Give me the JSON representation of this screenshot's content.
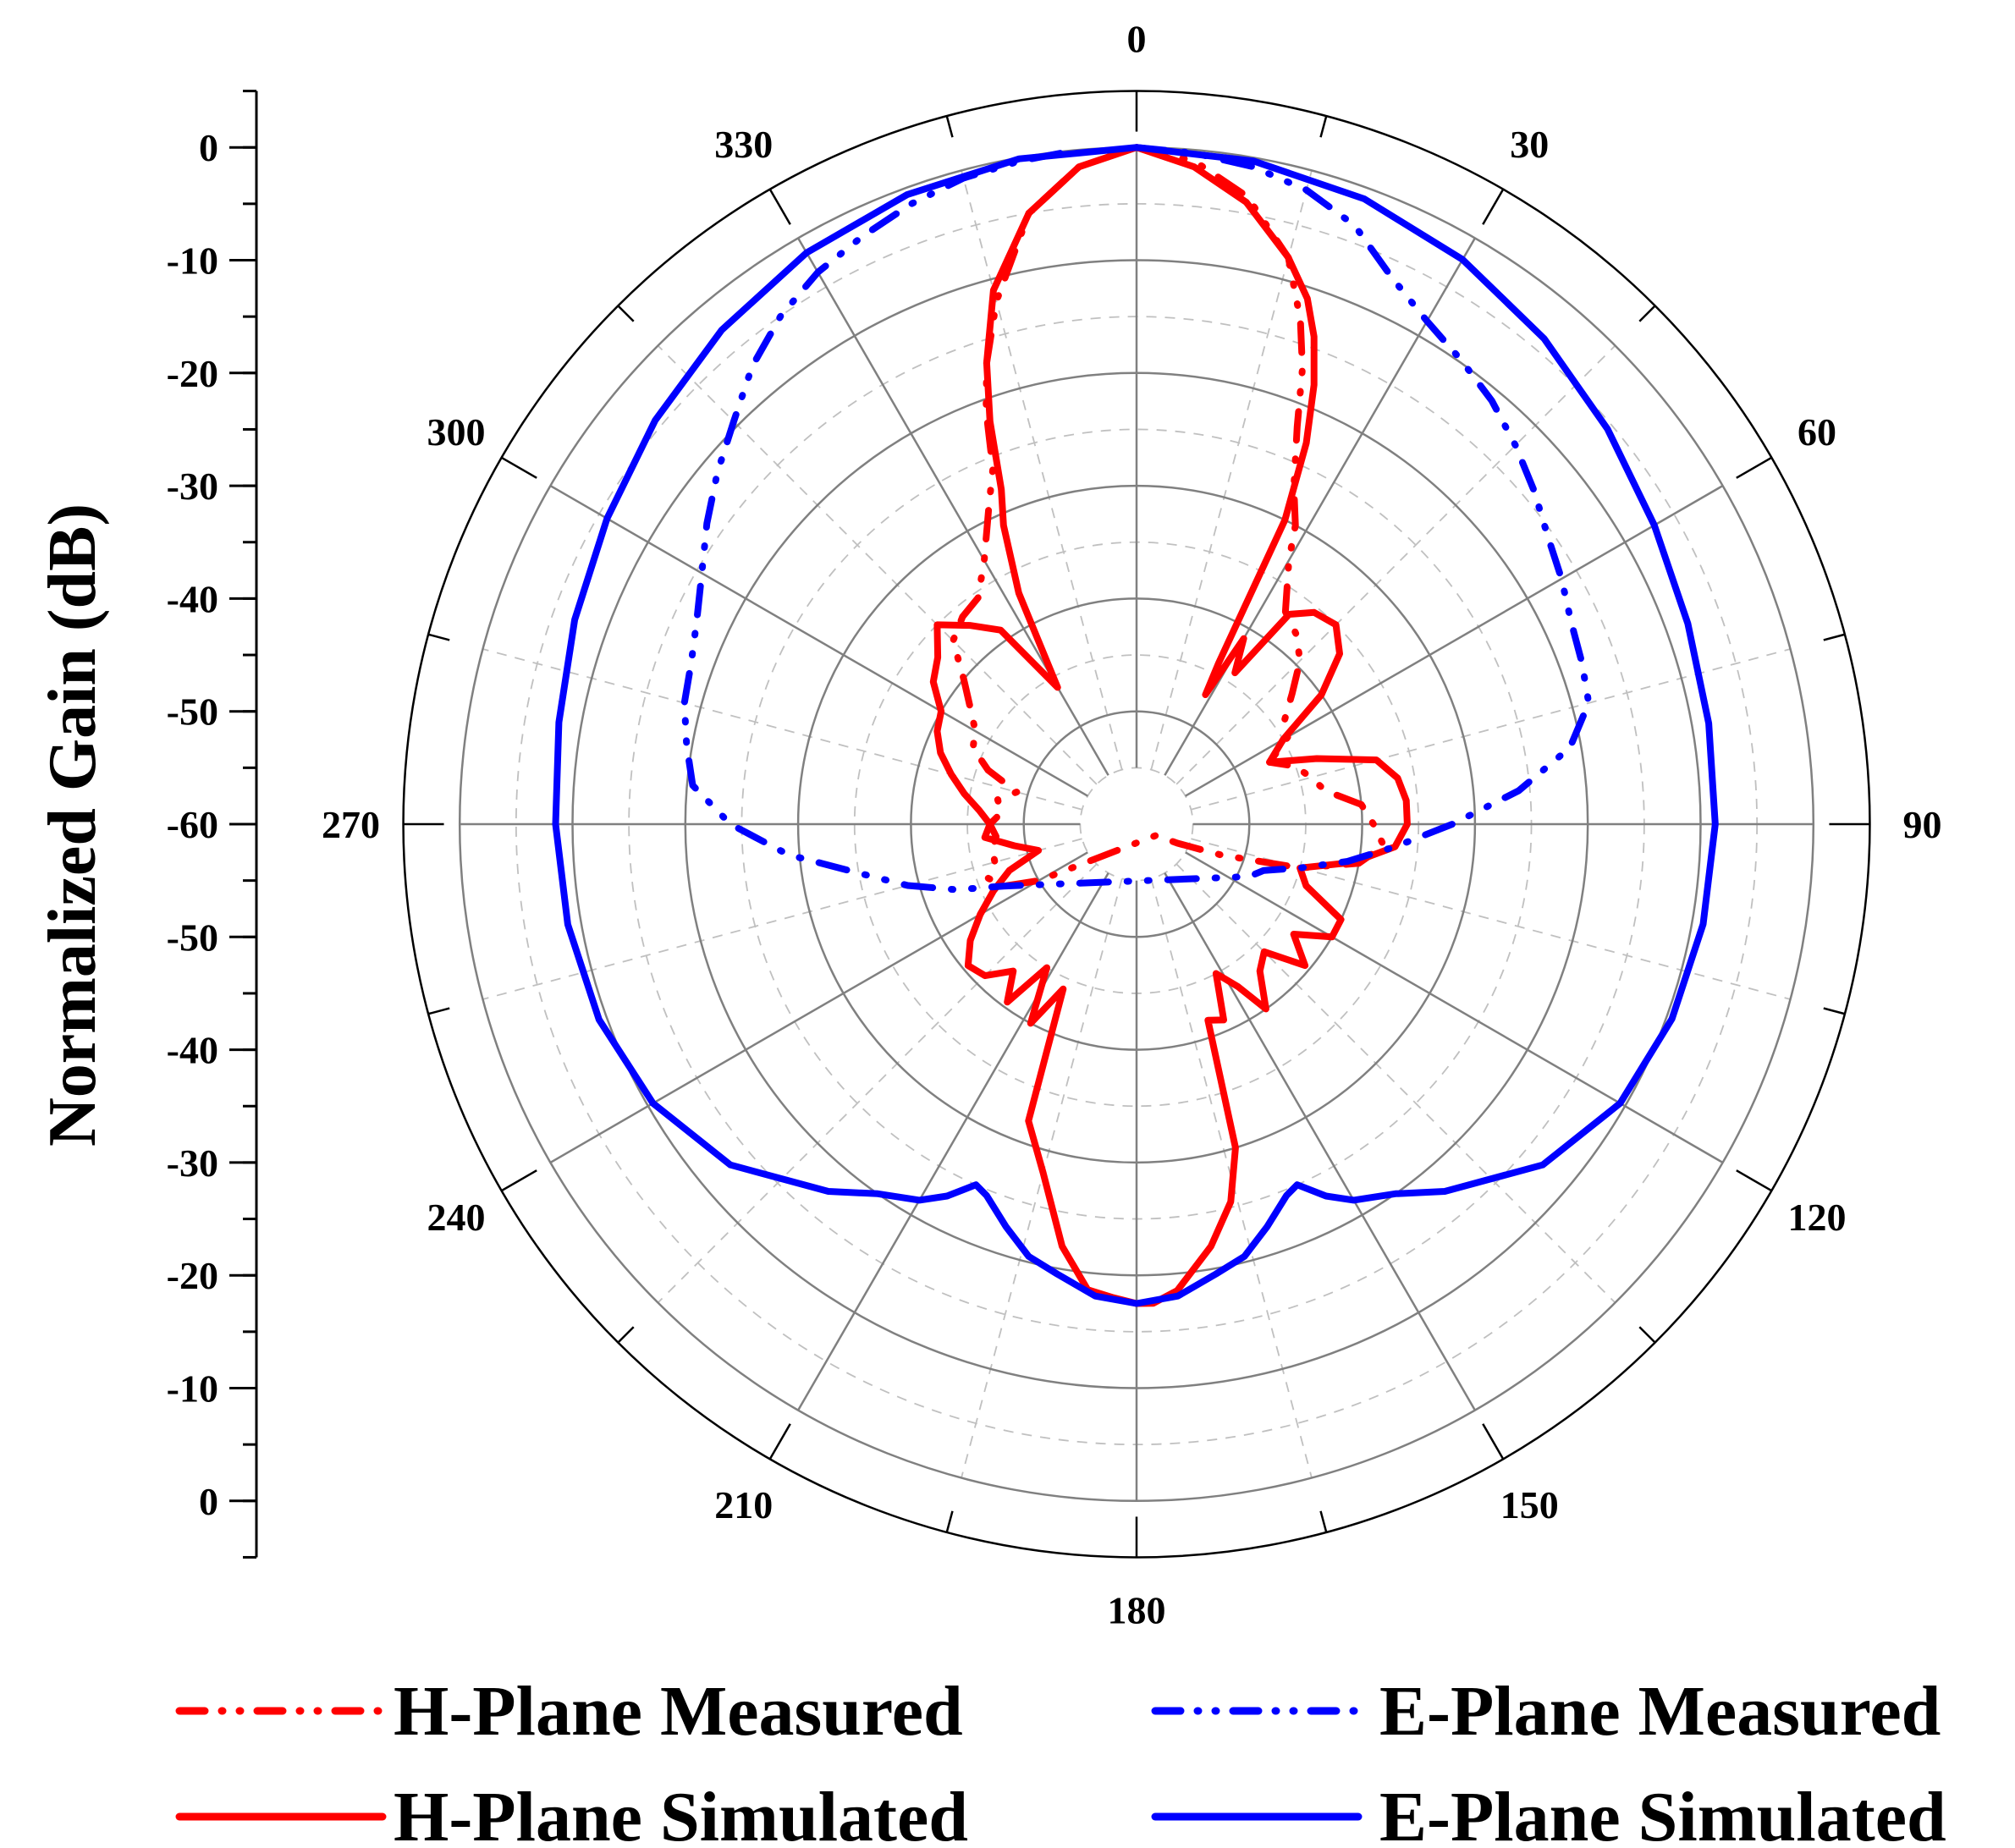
{
  "chart_data": {
    "type": "polar-line",
    "title": "",
    "ylabel": "Normalized Gain (dB)",
    "radial_axis": {
      "min": -60,
      "max": 0,
      "outer_limit": 5,
      "major_step": 10,
      "minor_step": 5,
      "left_axis_tick_labels": [
        "0",
        "-10",
        "-20",
        "-30",
        "-40",
        "-50",
        "-60",
        "-50",
        "-40",
        "-30",
        "-20",
        "-10",
        "0"
      ]
    },
    "angular_axis": {
      "unit": "degrees",
      "direction": "clockwise",
      "zero_location": "top",
      "major_step": 30,
      "minor_step": 15,
      "tick_labels": [
        "0",
        "30",
        "60",
        "90",
        "120",
        "150",
        "180",
        "210",
        "240",
        "270",
        "300",
        "330"
      ]
    },
    "grid": true,
    "legend_position": "bottom",
    "series": [
      {
        "name": "H-Plane Measured",
        "color": "#ff0000",
        "style": "dash-dot-dot",
        "angles": [
          0,
          5,
          10,
          15,
          18,
          20,
          22,
          25,
          28,
          30,
          35,
          40,
          45,
          50,
          55,
          60,
          65,
          70,
          75,
          80,
          85,
          90,
          95,
          100,
          105,
          110,
          115,
          120,
          240,
          245,
          250,
          255,
          260,
          265,
          270,
          275,
          280,
          285,
          290,
          295,
          300,
          305,
          310,
          315,
          320,
          325,
          330,
          335,
          338,
          340,
          342,
          345,
          350,
          355
        ],
        "values": [
          0,
          -1,
          -3.5,
          -8,
          -13,
          -17,
          -22,
          -27,
          -30,
          -33,
          -37,
          -38,
          -39.5,
          -42,
          -44,
          -44.5,
          -47,
          -45,
          -44,
          -43,
          -40,
          -39,
          -38,
          -40,
          -45,
          -52,
          -56,
          -58,
          -50,
          -47,
          -46,
          -47,
          -47,
          -47.5,
          -47,
          -48,
          -47.5,
          -49,
          -46,
          -44,
          -43.5,
          -42,
          -40,
          -37,
          -36,
          -35.5,
          -33,
          -29,
          -26,
          -21,
          -17,
          -12,
          -5,
          -1.5
        ]
      },
      {
        "name": "H-Plane Simulated",
        "color": "#ff0000",
        "style": "solid",
        "angles": [
          0,
          5,
          10,
          15,
          18,
          20,
          22,
          24,
          26,
          27,
          28,
          30,
          33,
          36,
          40,
          45,
          50,
          55,
          60,
          65,
          70,
          75,
          80,
          85,
          90,
          95,
          100,
          105,
          110,
          115,
          120,
          125,
          130,
          135,
          140,
          145,
          148,
          152,
          156,
          160,
          163,
          166,
          170,
          175,
          178,
          180,
          183,
          186,
          190,
          195,
          200,
          204,
          208,
          212,
          216,
          220,
          225,
          230,
          235,
          240,
          245,
          250,
          255,
          260,
          265,
          270,
          275,
          280,
          285,
          290,
          295,
          300,
          305,
          310,
          315,
          320,
          325,
          330,
          333,
          336,
          338,
          340,
          342,
          345,
          350,
          355
        ],
        "values": [
          0,
          -1.5,
          -4,
          -8,
          -11,
          -14,
          -18,
          -23,
          -30,
          -44,
          -47,
          -41,
          -44,
          -37,
          -35.5,
          -35,
          -36.5,
          -40,
          -45,
          -47,
          -43,
          -38,
          -36.5,
          -36,
          -36,
          -37,
          -40.5,
          -45,
          -44,
          -40,
          -40,
          -43,
          -40.5,
          -44,
          -43,
          -40,
          -43,
          -45,
          -41,
          -41.5,
          -30,
          -25.5,
          -22,
          -18.5,
          -17.5,
          -17.5,
          -18,
          -18.5,
          -22,
          -28,
          -32,
          -44,
          -40,
          -45,
          -40.5,
          -43,
          -41,
          -40.5,
          -42,
          -44,
          -46,
          -48,
          -51,
          -49,
          -46.5,
          -47,
          -46,
          -44.5,
          -43,
          -41.5,
          -40.5,
          -40,
          -38,
          -37,
          -35,
          -37,
          -39,
          -46,
          -37,
          -31,
          -28,
          -22,
          -17,
          -11,
          -5,
          -1.5
        ]
      },
      {
        "name": "E-Plane Measured",
        "color": "#0000ff",
        "style": "dash-dot-dot",
        "angles": [
          0,
          5,
          10,
          15,
          20,
          25,
          30,
          35,
          40,
          45,
          50,
          55,
          60,
          65,
          70,
          75,
          80,
          85,
          90,
          95,
          100,
          105,
          110,
          115,
          245,
          250,
          255,
          260,
          265,
          270,
          275,
          280,
          285,
          290,
          295,
          300,
          305,
          310,
          315,
          320,
          325,
          330,
          335,
          340,
          345,
          350,
          355
        ],
        "values": [
          0,
          -0.3,
          -0.8,
          -1.8,
          -3.5,
          -6.5,
          -8.5,
          -9.8,
          -11,
          -12.5,
          -14,
          -15.5,
          -16.5,
          -17.5,
          -18,
          -18.5,
          -21,
          -26,
          -32,
          -37,
          -41,
          -45,
          -48,
          -49,
          -47,
          -43,
          -39,
          -35,
          -29,
          -24,
          -20.5,
          -19.5,
          -18.5,
          -18,
          -17,
          -15.5,
          -13.5,
          -11.5,
          -9.5,
          -7,
          -5,
          -3.5,
          -2.5,
          -1.5,
          -0.7,
          -0.3,
          0
        ]
      },
      {
        "name": "E-Plane Simulated",
        "color": "#0000ff",
        "style": "solid",
        "angles": [
          0,
          10,
          20,
          30,
          40,
          50,
          60,
          70,
          80,
          90,
          100,
          110,
          120,
          130,
          140,
          145,
          150,
          153,
          156,
          158,
          162,
          166,
          170,
          175,
          180,
          185,
          190,
          194,
          198,
          202,
          204,
          207,
          210,
          215,
          220,
          230,
          240,
          250,
          260,
          270,
          280,
          290,
          300,
          310,
          320,
          330,
          340,
          350
        ],
        "values": [
          0,
          -0.3,
          -1,
          -2.2,
          -3.8,
          -5.5,
          -7,
          -8,
          -8.5,
          -8.7,
          -9,
          -9.5,
          -10.5,
          -13,
          -17.5,
          -20,
          -21.5,
          -23,
          -25,
          -24.5,
          -22.5,
          -20.5,
          -19.5,
          -18,
          -17.5,
          -18,
          -19.5,
          -20.5,
          -22.5,
          -24.5,
          -25,
          -23,
          -21.5,
          -20,
          -17.5,
          -13,
          -10.5,
          -9.3,
          -8.8,
          -8.5,
          -8,
          -7,
          -5.8,
          -4.3,
          -2.8,
          -1.5,
          -0.6,
          -0.1
        ]
      }
    ]
  },
  "legend": {
    "items": [
      {
        "label": "H-Plane Measured",
        "color": "#ff0000",
        "style": "dash-dot-dot"
      },
      {
        "label": "E-Plane Measured",
        "color": "#0000ff",
        "style": "dash-dot-dot"
      },
      {
        "label": "H-Plane Simulated",
        "color": "#ff0000",
        "style": "solid"
      },
      {
        "label": "E-Plane Simulated",
        "color": "#0000ff",
        "style": "solid"
      }
    ]
  },
  "colors": {
    "h_plane": "#ff0000",
    "e_plane": "#0000ff",
    "grid_major": "#808080",
    "grid_minor": "#c0c0c0",
    "axis": "#000000"
  }
}
